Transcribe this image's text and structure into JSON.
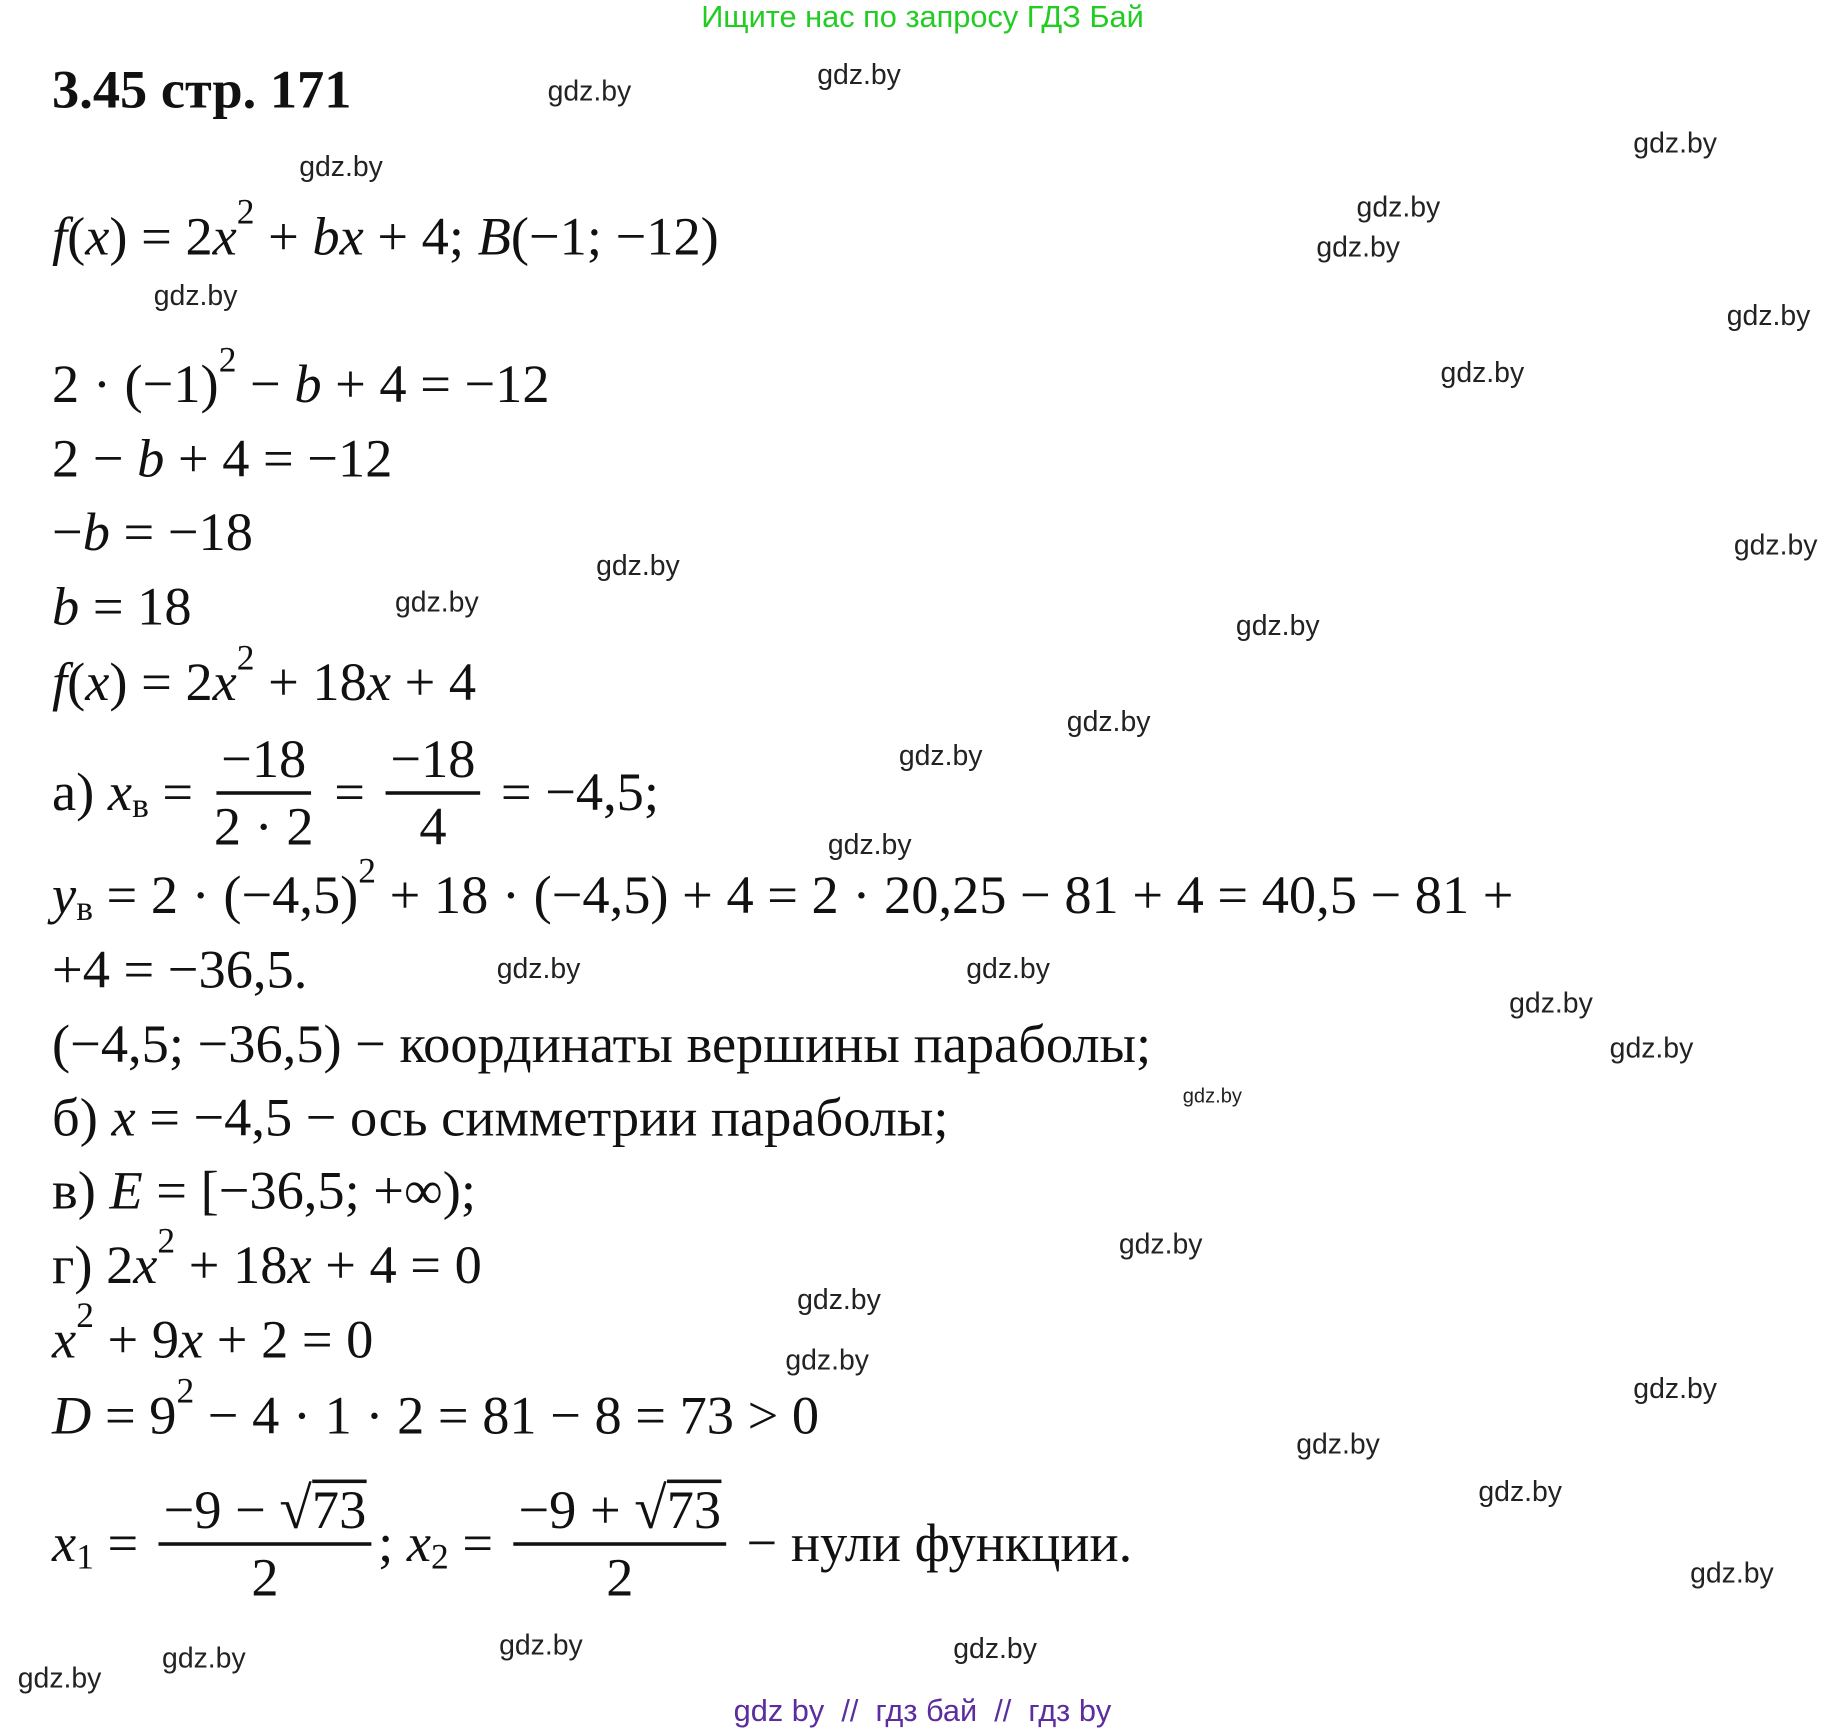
{
  "header": "Ищите нас по запросу ГДЗ Бай",
  "title": "3.45 стр. 171",
  "lines": [
    [
      {
        "i": "f"
      },
      "(",
      {
        "i": "x"
      },
      ") = 2",
      {
        "i": "x"
      },
      {
        "sup": "2"
      },
      " + ",
      {
        "i": "bx"
      },
      " + 4; ",
      {
        "i": "B"
      },
      "(−1; −12)"
    ],
    [
      "2 · (−1)",
      {
        "sup": "2"
      },
      " − ",
      {
        "i": "b"
      },
      " + 4 = −12"
    ],
    [
      "2 − ",
      {
        "i": "b"
      },
      " + 4 = −12"
    ],
    [
      "−",
      {
        "i": "b"
      },
      " = −18"
    ],
    [
      {
        "i": "b"
      },
      " = 18"
    ],
    [
      {
        "i": "f"
      },
      "(",
      {
        "i": "x"
      },
      ") = 2",
      {
        "i": "x"
      },
      {
        "sup": "2"
      },
      " + 18",
      {
        "i": "x"
      },
      " + 4"
    ],
    [
      "а) ",
      {
        "i": "x"
      },
      {
        "sub": "в"
      },
      " = ",
      {
        "frac": [
          [
            "−18"
          ],
          [
            "2 · 2"
          ]
        ]
      },
      " = ",
      {
        "frac": [
          [
            "−18"
          ],
          [
            "4"
          ]
        ]
      },
      " = −4,5;"
    ],
    [
      {
        "i": "y"
      },
      {
        "sub": "в"
      },
      " = 2 · (−4,5)",
      {
        "sup": "2"
      },
      " + 18 · (−4,5) + 4 = 2 · 20,25 − 81 + 4 = 40,5 − 81 +"
    ],
    [
      "+4 = −36,5."
    ],
    [
      "(−4,5; −36,5) − координаты вершины параболы;"
    ],
    [
      "б) ",
      {
        "i": "x"
      },
      " = −4,5 − ось симметрии параболы;"
    ],
    [
      "в) ",
      {
        "i": "E"
      },
      " = [−36,5; +∞);"
    ],
    [
      "г) 2",
      {
        "i": "x"
      },
      {
        "sup": "2"
      },
      " + 18",
      {
        "i": "x"
      },
      " + 4 = 0"
    ],
    [
      {
        "i": "x"
      },
      {
        "sup": "2"
      },
      " + 9",
      {
        "i": "x"
      },
      " + 2 = 0"
    ],
    [
      {
        "i": "D"
      },
      " = 9",
      {
        "sup": "2"
      },
      " − 4 · 1 · 2 = 81 − 8 = 73 > 0"
    ],
    [
      {
        "i": "x"
      },
      {
        "sub": "1"
      },
      " = ",
      {
        "frac": [
          [
            "−9 − ",
            {
              "sqrt": "73"
            }
          ],
          [
            "2"
          ]
        ]
      },
      "; ",
      {
        "i": "x"
      },
      {
        "sub": "2"
      },
      " = ",
      {
        "frac": [
          [
            "−9 + ",
            {
              "sqrt": "73"
            }
          ],
          [
            "2"
          ]
        ]
      },
      " − нули функции."
    ]
  ],
  "watermark": "gdz.by",
  "footer": "gdz by  //  гдз бай  //  гдз by",
  "colors": {
    "header": "#22cc22",
    "footer": "#5b2d9e"
  }
}
